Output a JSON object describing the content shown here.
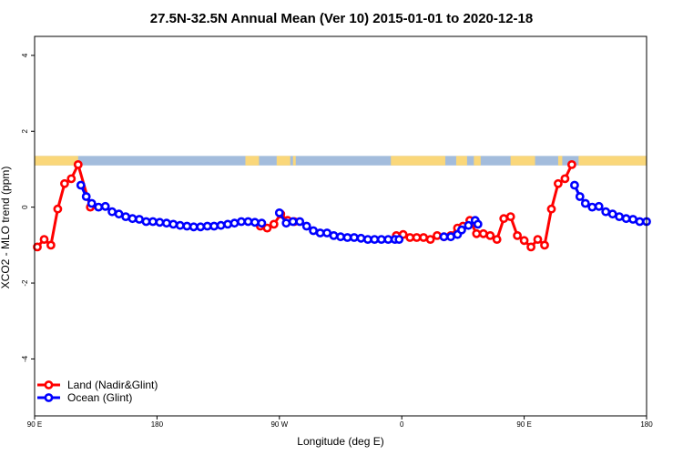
{
  "chart_data": {
    "type": "line",
    "title": "27.5N-32.5N Annual Mean (Ver 10)   2015-01-01 to 2020-12-18",
    "xlabel": "Longitude (deg E)",
    "ylabel": "XCO2 - MLO trend (ppm)",
    "xlim": [
      90,
      540
    ],
    "ylim": [
      -5.5,
      4.5
    ],
    "x_ticks": [
      {
        "value": 90,
        "label": "90 E"
      },
      {
        "value": 180,
        "label": "180"
      },
      {
        "value": 270,
        "label": "90 W"
      },
      {
        "value": 360,
        "label": "0"
      },
      {
        "value": 450,
        "label": "90 E"
      },
      {
        "value": 540,
        "label": "180"
      }
    ],
    "y_ticks": [
      {
        "value": -4,
        "label": "-4"
      },
      {
        "value": -2,
        "label": "-2"
      },
      {
        "value": 0,
        "label": "0"
      },
      {
        "value": 2,
        "label": "2"
      },
      {
        "value": 4,
        "label": "4"
      }
    ],
    "land_mask": {
      "y_range": [
        1.1,
        1.35
      ],
      "ocean_color": "#a3bcdc",
      "land_color": "#fad77a",
      "land_segments": [
        [
          90,
          122
        ],
        [
          245,
          255
        ],
        [
          268,
          278
        ],
        [
          280,
          282
        ],
        [
          352,
          392
        ],
        [
          400,
          408
        ],
        [
          413,
          418
        ],
        [
          440,
          458
        ],
        [
          475,
          478
        ],
        [
          490,
          540
        ]
      ]
    },
    "series": [
      {
        "name": "Land (Nadir&Glint)",
        "color": "#ff0000",
        "x": [
          92,
          97,
          102,
          107,
          112,
          117,
          122,
          131,
          256,
          261,
          266,
          271,
          276,
          281,
          356,
          361,
          366,
          371,
          376,
          381,
          386,
          391,
          396,
          401,
          405,
          410,
          415,
          420,
          425,
          430,
          435,
          440,
          445,
          450,
          455,
          460,
          465,
          470,
          475,
          480,
          485
        ],
        "y": [
          -1.05,
          -0.85,
          -1.0,
          -0.05,
          0.62,
          0.75,
          1.12,
          0.0,
          -0.5,
          -0.55,
          -0.45,
          -0.18,
          -0.35,
          -0.38,
          -0.75,
          -0.72,
          -0.8,
          -0.8,
          -0.8,
          -0.85,
          -0.75,
          -0.78,
          -0.75,
          -0.55,
          -0.5,
          -0.35,
          -0.7,
          -0.7,
          -0.75,
          -0.85,
          -0.3,
          -0.25,
          -0.75,
          -0.88,
          -1.05,
          -0.85,
          -1.0,
          -0.05,
          0.62,
          0.75,
          1.12
        ]
      },
      {
        "name": "Ocean (Glint)",
        "color": "#0000ff",
        "x": [
          124,
          128,
          132,
          137,
          142,
          147,
          152,
          157,
          162,
          167,
          172,
          177,
          182,
          187,
          192,
          197,
          202,
          207,
          212,
          217,
          222,
          227,
          232,
          237,
          242,
          247,
          252,
          257,
          270,
          275,
          280,
          285,
          290,
          295,
          300,
          305,
          310,
          315,
          320,
          325,
          330,
          335,
          340,
          345,
          350,
          355,
          358,
          391,
          396,
          401,
          404,
          409,
          414,
          416,
          487,
          491,
          495,
          500,
          505,
          510,
          515,
          520,
          525,
          530,
          535,
          540
        ],
        "y": [
          0.58,
          0.28,
          0.1,
          0.0,
          0.02,
          -0.12,
          -0.18,
          -0.25,
          -0.3,
          -0.32,
          -0.38,
          -0.38,
          -0.4,
          -0.42,
          -0.45,
          -0.48,
          -0.5,
          -0.52,
          -0.52,
          -0.5,
          -0.5,
          -0.48,
          -0.45,
          -0.42,
          -0.38,
          -0.38,
          -0.4,
          -0.42,
          -0.15,
          -0.42,
          -0.38,
          -0.38,
          -0.5,
          -0.62,
          -0.68,
          -0.68,
          -0.75,
          -0.78,
          -0.8,
          -0.8,
          -0.82,
          -0.85,
          -0.85,
          -0.85,
          -0.85,
          -0.85,
          -0.85,
          -0.78,
          -0.78,
          -0.72,
          -0.6,
          -0.48,
          -0.35,
          -0.45,
          0.58,
          0.28,
          0.1,
          0.0,
          0.02,
          -0.12,
          -0.18,
          -0.25,
          -0.3,
          -0.32,
          -0.38,
          -0.38
        ]
      }
    ],
    "legend_position": "bottom-left",
    "grid": false
  }
}
